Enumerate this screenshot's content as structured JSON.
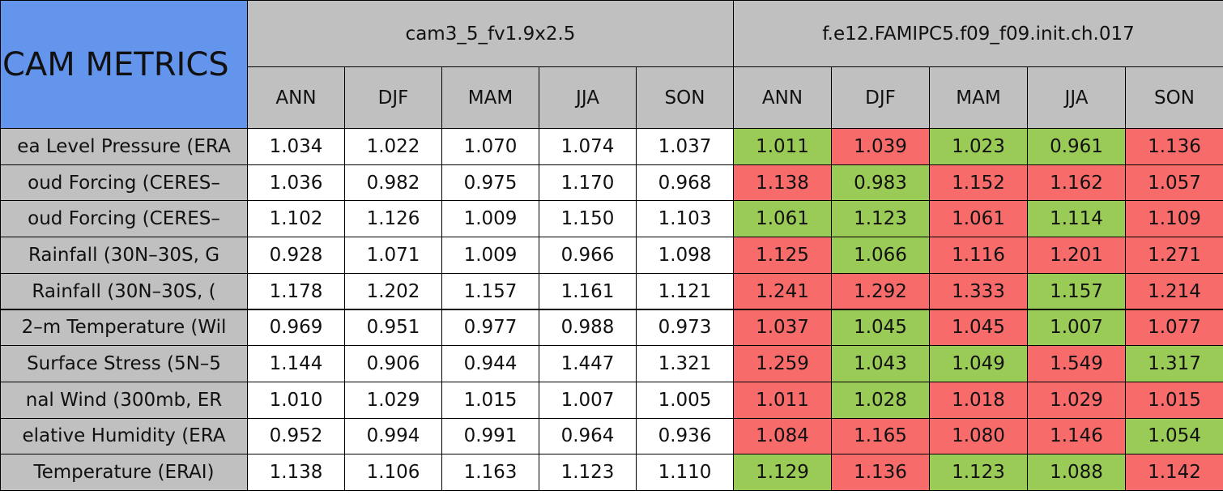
{
  "table": {
    "corner": "CAM METRICS",
    "groups": [
      "cam3_5_fv1.9x2.5",
      "f.e12.FAMIPC5.f09_f09.init.ch.017"
    ],
    "seasons": [
      "ANN",
      "DJF",
      "MAM",
      "JJA",
      "SON",
      "ANN",
      "DJF",
      "MAM",
      "JJA",
      "SON"
    ],
    "rows": [
      {
        "label": "ea Level Pressure (ERA",
        "values": [
          "1.034",
          "1.022",
          "1.070",
          "1.074",
          "1.037",
          "1.011",
          "1.039",
          "1.023",
          "0.961",
          "1.136"
        ],
        "colors": [
          "#9bcb57",
          "#f76b6b",
          "#9bcb57",
          "#9bcb57",
          "#f76b6b"
        ]
      },
      {
        "label": "oud Forcing (CERES–",
        "values": [
          "1.036",
          "0.982",
          "0.975",
          "1.170",
          "0.968",
          "1.138",
          "0.983",
          "1.152",
          "1.162",
          "1.057"
        ],
        "colors": [
          "#f76b6b",
          "#9bcb57",
          "#f76b6b",
          "#f76b6b",
          "#f76b6b"
        ]
      },
      {
        "label": "oud Forcing (CERES–",
        "values": [
          "1.102",
          "1.126",
          "1.009",
          "1.150",
          "1.103",
          "1.061",
          "1.123",
          "1.061",
          "1.114",
          "1.109"
        ],
        "colors": [
          "#9bcb57",
          "#9bcb57",
          "#f76b6b",
          "#9bcb57",
          "#f76b6b"
        ]
      },
      {
        "label": "Rainfall (30N–30S, G",
        "values": [
          "0.928",
          "1.071",
          "1.009",
          "0.966",
          "1.098",
          "1.125",
          "1.066",
          "1.116",
          "1.201",
          "1.271"
        ],
        "colors": [
          "#f76b6b",
          "#9bcb57",
          "#f76b6b",
          "#f76b6b",
          "#f76b6b"
        ]
      },
      {
        "label": "Rainfall (30N–30S, (",
        "values": [
          "1.178",
          "1.202",
          "1.157",
          "1.161",
          "1.121",
          "1.241",
          "1.292",
          "1.333",
          "1.157",
          "1.214"
        ],
        "colors": [
          "#f76b6b",
          "#f76b6b",
          "#f76b6b",
          "#9bcb57",
          "#f76b6b"
        ]
      },
      {
        "label": "2–m Temperature (Wil",
        "values": [
          "0.969",
          "0.951",
          "0.977",
          "0.988",
          "0.973",
          "1.037",
          "1.045",
          "1.045",
          "1.007",
          "1.077"
        ],
        "colors": [
          "#f76b6b",
          "#9bcb57",
          "#f76b6b",
          "#9bcb57",
          "#f76b6b"
        ]
      },
      {
        "label": "Surface Stress (5N–5",
        "values": [
          "1.144",
          "0.906",
          "0.944",
          "1.447",
          "1.321",
          "1.259",
          "1.043",
          "1.049",
          "1.549",
          "1.317"
        ],
        "colors": [
          "#f76b6b",
          "#9bcb57",
          "#9bcb57",
          "#f76b6b",
          "#9bcb57"
        ]
      },
      {
        "label": "nal Wind (300mb, ER",
        "values": [
          "1.010",
          "1.029",
          "1.015",
          "1.007",
          "1.005",
          "1.011",
          "1.028",
          "1.018",
          "1.029",
          "1.015"
        ],
        "colors": [
          "#f76b6b",
          "#9bcb57",
          "#f76b6b",
          "#f76b6b",
          "#f76b6b"
        ]
      },
      {
        "label": "elative Humidity (ERA",
        "values": [
          "0.952",
          "0.994",
          "0.991",
          "0.964",
          "0.936",
          "1.084",
          "1.165",
          "1.080",
          "1.146",
          "1.054"
        ],
        "colors": [
          "#f76b6b",
          "#f76b6b",
          "#f76b6b",
          "#f76b6b",
          "#9bcb57"
        ]
      },
      {
        "label": "Temperature (ERAI)",
        "values": [
          "1.138",
          "1.106",
          "1.163",
          "1.123",
          "1.110",
          "1.129",
          "1.136",
          "1.123",
          "1.088",
          "1.142"
        ],
        "colors": [
          "#9bcb57",
          "#f76b6b",
          "#9bcb57",
          "#9bcb57",
          "#f76b6b"
        ]
      }
    ]
  }
}
